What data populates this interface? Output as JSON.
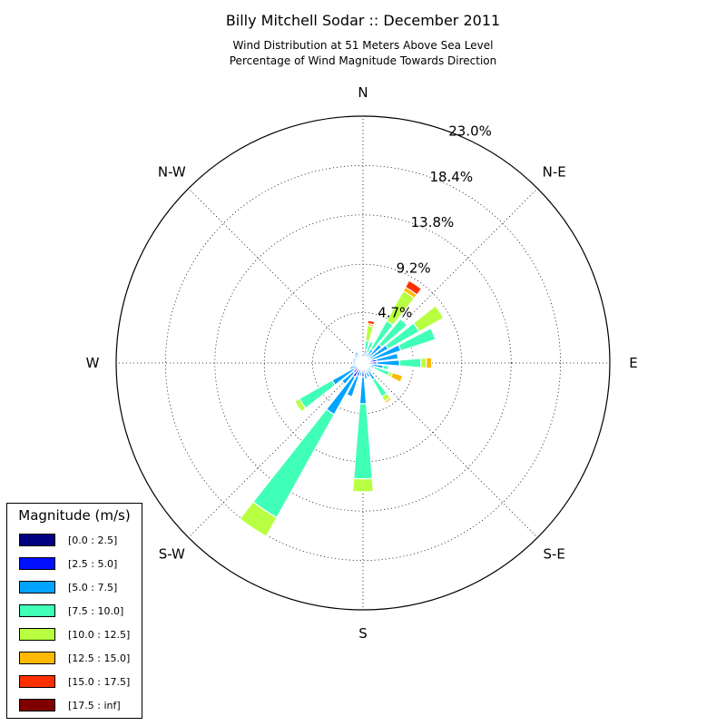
{
  "chart_data": {
    "type": "windrose",
    "title": "Billy Mitchell Sodar :: December 2011",
    "subtitle": "Wind Distribution at 51 Meters Above Sea Level",
    "subtitle2": "Percentage of Wind Magnitude Towards Direction",
    "direction_labels": [
      "N",
      "N-E",
      "E",
      "S-E",
      "S",
      "S-W",
      "W",
      "N-W"
    ],
    "radial_ticks": [
      "4.7%",
      "9.2%",
      "13.8%",
      "18.4%",
      "23.0%"
    ],
    "rmax": 23.0,
    "grid": true,
    "legend": {
      "title": "Magnitude (m/s)",
      "placement": "lower-left",
      "bins": [
        {
          "label": "[0.0 : 2.5]",
          "color": "#000080"
        },
        {
          "label": "[2.5 : 5.0]",
          "color": "#0010ff"
        },
        {
          "label": "[5.0 : 7.5]",
          "color": "#00a4ff"
        },
        {
          "label": "[7.5 : 10.0]",
          "color": "#40ffb7"
        },
        {
          "label": "[10.0 : 12.5]",
          "color": "#b7ff40"
        },
        {
          "label": "[12.5 : 15.0]",
          "color": "#ffb900"
        },
        {
          "label": "[15.0 : 17.5]",
          "color": "#ff3000"
        },
        {
          "label": "[17.5 : inf]",
          "color": "#800000"
        }
      ]
    },
    "sectors": [
      {
        "direction": 0,
        "values": [
          0.3,
          0.3,
          0.0,
          0.0,
          0.0,
          0.0,
          0.0,
          0.0
        ]
      },
      {
        "direction": 11.25,
        "values": [
          0.2,
          0.4,
          0.6,
          0.9,
          1.4,
          0.2,
          0.3,
          0.0
        ]
      },
      {
        "direction": 22.5,
        "values": [
          0.2,
          0.3,
          0.5,
          1.1,
          0.0,
          0.0,
          0.0,
          0.0
        ]
      },
      {
        "direction": 33.75,
        "values": [
          0.2,
          0.3,
          1.0,
          3.0,
          3.2,
          0.4,
          0.7,
          0.0
        ]
      },
      {
        "direction": 45,
        "values": [
          0.2,
          0.4,
          1.7,
          3.1,
          0.0,
          0.0,
          0.0,
          0.0
        ]
      },
      {
        "direction": 56.25,
        "values": [
          0.2,
          0.5,
          2.0,
          3.3,
          2.6,
          0.0,
          0.0,
          0.0
        ]
      },
      {
        "direction": 67.5,
        "values": [
          0.2,
          0.5,
          3.0,
          3.4,
          0.0,
          0.0,
          0.0,
          0.0
        ]
      },
      {
        "direction": 78.75,
        "values": [
          0.3,
          1.0,
          2.0,
          0.0,
          0.0,
          0.0,
          0.0,
          0.0
        ]
      },
      {
        "direction": 90,
        "values": [
          0.3,
          1.0,
          2.1,
          2.0,
          0.5,
          0.5,
          0.0,
          0.0
        ]
      },
      {
        "direction": 101.25,
        "values": [
          0.3,
          0.5,
          1.1,
          0.5,
          0.0,
          0.0,
          0.0,
          0.0
        ]
      },
      {
        "direction": 112.5,
        "values": [
          0.2,
          0.4,
          0.5,
          1.5,
          0.3,
          1.0,
          0.0,
          0.0
        ]
      },
      {
        "direction": 123.75,
        "values": [
          0.2,
          0.3,
          0.4,
          0.0,
          0.0,
          0.0,
          0.0,
          0.0
        ]
      },
      {
        "direction": 135,
        "values": [
          0.2,
          0.3,
          0.5,
          0.0,
          0.0,
          0.0,
          0.0,
          0.0
        ]
      },
      {
        "direction": 146.25,
        "values": [
          0.3,
          0.4,
          1.1,
          1.8,
          0.5,
          0.2,
          0.0,
          0.0
        ]
      },
      {
        "direction": 157.5,
        "values": [
          0.3,
          0.5,
          0.6,
          0.0,
          0.0,
          0.0,
          0.0,
          0.0
        ]
      },
      {
        "direction": 168.75,
        "values": [
          0.3,
          0.6,
          0.6,
          0.0,
          0.0,
          0.0,
          0.0,
          0.0
        ]
      },
      {
        "direction": 180,
        "values": [
          0.3,
          1.0,
          2.5,
          7.0,
          1.2,
          0.0,
          0.0,
          0.0
        ]
      },
      {
        "direction": 191.25,
        "values": [
          0.3,
          0.5,
          0.4,
          0.0,
          0.0,
          0.0,
          0.0,
          0.0
        ]
      },
      {
        "direction": 202.5,
        "values": [
          0.3,
          1.0,
          2.0,
          0.0,
          0.0,
          0.0,
          0.0,
          0.0
        ]
      },
      {
        "direction": 213.75,
        "values": [
          0.5,
          1.0,
          4.0,
          11.0,
          2.0,
          0.0,
          0.0,
          0.0
        ]
      },
      {
        "direction": 225,
        "values": [
          0.4,
          0.8,
          1.4,
          0.0,
          0.0,
          0.0,
          0.0,
          0.0
        ]
      },
      {
        "direction": 236.25,
        "values": [
          0.4,
          0.6,
          2.3,
          3.5,
          0.5,
          0.0,
          0.0,
          0.0
        ]
      },
      {
        "direction": 247.5,
        "values": [
          0.3,
          0.3,
          0.7,
          0.0,
          0.0,
          0.0,
          0.0,
          0.0
        ]
      },
      {
        "direction": 258.75,
        "values": [
          0.3,
          0.4,
          0.3,
          0.0,
          0.0,
          0.0,
          0.0,
          0.0
        ]
      },
      {
        "direction": 270,
        "values": [
          0.3,
          0.3,
          0.3,
          0.0,
          0.0,
          0.0,
          0.0,
          0.0
        ]
      },
      {
        "direction": 281.25,
        "values": [
          0.3,
          0.3,
          0.4,
          0.0,
          0.0,
          0.0,
          0.0,
          0.0
        ]
      },
      {
        "direction": 292.5,
        "values": [
          0.3,
          0.3,
          0.4,
          0.0,
          0.0,
          0.0,
          0.0,
          0.0
        ]
      },
      {
        "direction": 303.75,
        "values": [
          0.3,
          0.3,
          0.3,
          0.0,
          0.0,
          0.0,
          0.0,
          0.0
        ]
      },
      {
        "direction": 315,
        "values": [
          0.3,
          0.4,
          0.4,
          0.0,
          0.0,
          0.0,
          0.0,
          0.0
        ]
      },
      {
        "direction": 326.25,
        "values": [
          0.3,
          0.5,
          0.4,
          0.0,
          0.0,
          0.0,
          0.0,
          0.0
        ]
      },
      {
        "direction": 337.5,
        "values": [
          0.3,
          0.4,
          0.0,
          0.0,
          0.0,
          0.0,
          0.0,
          0.0
        ]
      },
      {
        "direction": 348.75,
        "values": [
          0.3,
          0.4,
          0.0,
          0.0,
          0.0,
          0.0,
          0.0,
          0.0
        ]
      }
    ]
  }
}
